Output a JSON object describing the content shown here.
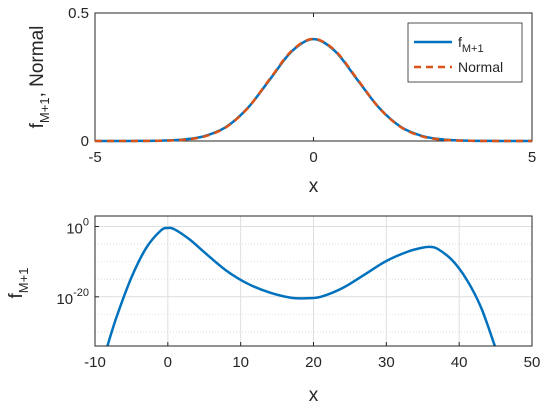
{
  "chart_data": [
    {
      "type": "line",
      "xlabel": "x",
      "ylabel": {
        "base": "f",
        "sub": "M+1",
        "rest": ", Normal"
      },
      "xlim": [
        -5,
        5
      ],
      "ylim": [
        0,
        0.5
      ],
      "xticks": [
        -5,
        0,
        5
      ],
      "yticks": [
        0,
        0.5
      ],
      "xticklabels": [
        "-5",
        "0",
        "5"
      ],
      "yticklabels": [
        "0",
        "0.5"
      ],
      "grid": false,
      "legend_position": "top-right",
      "series": [
        {
          "name": "f_{M+1}",
          "legend": {
            "base": "f",
            "sub": "M+1"
          },
          "style": "solid",
          "color": "#0072BD",
          "x": [
            -5,
            -4.5,
            -4,
            -3.5,
            -3,
            -2.5,
            -2,
            -1.5,
            -1,
            -0.5,
            0,
            0.5,
            1,
            1.5,
            2,
            2.5,
            3,
            3.5,
            4,
            4.5,
            5
          ],
          "y": [
            0.0,
            0.0,
            0.0004,
            0.0015,
            0.0055,
            0.019,
            0.055,
            0.13,
            0.24,
            0.35,
            0.398,
            0.35,
            0.24,
            0.13,
            0.055,
            0.019,
            0.0055,
            0.0015,
            0.0004,
            0.0,
            0.0
          ]
        },
        {
          "name": "Normal",
          "legend": {
            "base": "Normal",
            "sub": ""
          },
          "style": "dashed",
          "color": "#D95319",
          "x": [
            -5,
            -4.5,
            -4,
            -3.5,
            -3,
            -2.5,
            -2,
            -1.5,
            -1,
            -0.5,
            0,
            0.5,
            1,
            1.5,
            2,
            2.5,
            3,
            3.5,
            4,
            4.5,
            5
          ],
          "y": [
            0.0,
            0.0,
            0.0001,
            0.0009,
            0.0044,
            0.0175,
            0.054,
            0.1295,
            0.242,
            0.352,
            0.399,
            0.352,
            0.242,
            0.1295,
            0.054,
            0.0175,
            0.0044,
            0.0009,
            0.0001,
            0.0,
            0.0
          ]
        }
      ]
    },
    {
      "type": "line",
      "xlabel": "x",
      "ylabel": {
        "base": "f",
        "sub": "M+1",
        "rest": ""
      },
      "xlim": [
        -10,
        50
      ],
      "yscale": "log",
      "ylim_log10": [
        -34,
        3
      ],
      "xticks": [
        -10,
        0,
        10,
        20,
        30,
        40,
        50
      ],
      "xticklabels": [
        "-10",
        "0",
        "10",
        "20",
        "30",
        "40",
        "50"
      ],
      "yticks_log10": [
        0,
        -20
      ],
      "yticklabels": [
        {
          "base": "10",
          "exp": "0"
        },
        {
          "base": "10",
          "exp": "-20"
        }
      ],
      "grid": true,
      "series": [
        {
          "name": "",
          "style": "solid",
          "color": "#0072BD",
          "x": [
            -8.3,
            -7,
            -5,
            -3,
            -1,
            0,
            1,
            3,
            5,
            8,
            11,
            14,
            17,
            19,
            21,
            24,
            27,
            30,
            33,
            35,
            36,
            37,
            39,
            41,
            43,
            44.9
          ],
          "y_log10": [
            -34,
            -25.5,
            -14.5,
            -6.2,
            -1.2,
            -0.4,
            -0.9,
            -3.7,
            -7.3,
            -12.5,
            -16.3,
            -18.8,
            -20.3,
            -20.4,
            -20.0,
            -17.5,
            -13.7,
            -9.8,
            -7.1,
            -6.0,
            -5.8,
            -6.3,
            -9.5,
            -15.0,
            -23.0,
            -34
          ]
        }
      ]
    }
  ]
}
